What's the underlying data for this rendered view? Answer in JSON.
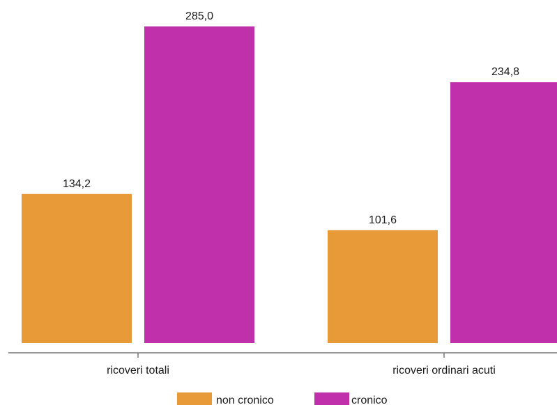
{
  "chart_data": {
    "type": "bar",
    "categories": [
      "ricoveri totali",
      "ricoveri ordinari acuti"
    ],
    "series": [
      {
        "name": "non cronico",
        "values": [
          134.2,
          101.6
        ],
        "labels": [
          "134,2",
          "101,6"
        ],
        "color": "#E89A38"
      },
      {
        "name": "cronico",
        "values": [
          285.0,
          234.8
        ],
        "labels": [
          "285,0",
          "234,8"
        ],
        "color": "#C030AA"
      }
    ],
    "title": "",
    "xlabel": "",
    "ylabel": "",
    "ylim": [
      0,
      285
    ],
    "grid": false,
    "legend_position": "bottom",
    "axis_color": "#777777"
  }
}
